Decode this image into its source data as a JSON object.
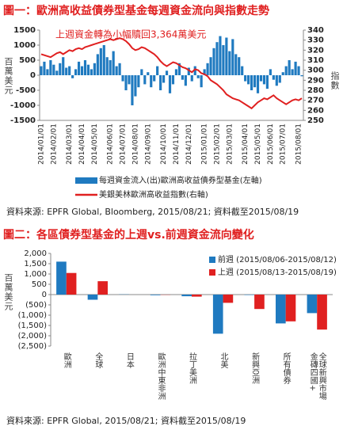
{
  "chart_data": [
    {
      "type": "combo",
      "title": "圖一：歐洲高收益債券型基金每週資金流向與指數走勢",
      "annotation": "上週資金轉為小幅贖回3,364萬美元",
      "y_label": "百萬美元",
      "y2_label": "指數",
      "categories": [
        "2014/01/01",
        null,
        null,
        null,
        "2014/02/01",
        null,
        null,
        null,
        null,
        "2014/03/01",
        null,
        null,
        null,
        "2014/04/01",
        null,
        null,
        null,
        "2014/05/01",
        null,
        null,
        null,
        null,
        "2014/06/01",
        null,
        null,
        null,
        "2014/07/01",
        null,
        null,
        null,
        "2014/08/01",
        null,
        null,
        null,
        "2014/09/01",
        null,
        null,
        null,
        null,
        "2014/10/01",
        null,
        null,
        null,
        "2014/11/01",
        null,
        null,
        null,
        "2014/12/01",
        null,
        null,
        null,
        null,
        "2015/01/01",
        null,
        null,
        null,
        "2015/02/01",
        null,
        null,
        null,
        "2015/03/01",
        null,
        null,
        null,
        null,
        "2015/04/01",
        null,
        null,
        null,
        "2015/05/01",
        null,
        null,
        null,
        "2015/06/01",
        null,
        null,
        null,
        "2015/07/01",
        null,
        null,
        null,
        null,
        "2015/08/01",
        null
      ],
      "series": [
        {
          "name": "每週資金流入(出)歐洲高收益債券型基金(左軸)",
          "type": "bar",
          "color": "#1f7ac0",
          "values": [
            300,
            450,
            200,
            500,
            350,
            150,
            400,
            600,
            250,
            300,
            -100,
            200,
            450,
            300,
            500,
            350,
            200,
            400,
            700,
            900,
            1000,
            600,
            500,
            800,
            300,
            400,
            -200,
            -500,
            -300,
            -1000,
            -700,
            -400,
            200,
            -300,
            100,
            -400,
            -200,
            300,
            -500,
            -250,
            150,
            -600,
            -300,
            200,
            400,
            -150,
            -350,
            250,
            -200,
            300,
            -100,
            -400,
            200,
            400,
            600,
            900,
            1100,
            1300,
            1000,
            1250,
            800,
            1200,
            700,
            600,
            300,
            -200,
            -300,
            -500,
            -400,
            -600,
            -200,
            -300,
            -450,
            200,
            -150,
            -350,
            -250,
            100,
            300,
            500,
            200,
            450,
            300,
            -33.64
          ]
        },
        {
          "name": "美銀美林歐洲高收益指數(右軸)",
          "type": "line",
          "color": "#e02020",
          "axis": "y2",
          "values": [
            316,
            315,
            314,
            313,
            315,
            317,
            318,
            316,
            318,
            320,
            319,
            321,
            322,
            321,
            323,
            324,
            325,
            326,
            327,
            328,
            329,
            330,
            331,
            330,
            331,
            332,
            331,
            329,
            326,
            322,
            320,
            321,
            323,
            322,
            320,
            318,
            316,
            313,
            309,
            306,
            304,
            306,
            308,
            307,
            305,
            303,
            302,
            300,
            298,
            301,
            300,
            297,
            296,
            294,
            290,
            288,
            286,
            283,
            280,
            276,
            274,
            272,
            271,
            270,
            268,
            266,
            264,
            262,
            265,
            268,
            270,
            272,
            271,
            273,
            275,
            272,
            270,
            268,
            266,
            268,
            270,
            271,
            270,
            272
          ]
        }
      ],
      "ylim": [
        -1500,
        1500
      ],
      "yticks": [
        -1500,
        -1000,
        -500,
        0,
        500,
        1000,
        1500
      ],
      "y2lim": [
        250,
        340
      ],
      "y2ticks": [
        250,
        260,
        270,
        280,
        290,
        300,
        310,
        320,
        330,
        340
      ],
      "legend": "bottom",
      "source": "資料來源: EPFR Global, Bloomberg, 2015/08/21; 資料截至2015/08/19"
    },
    {
      "type": "bar",
      "title": "圖二：各區債券型基金的上週vs.前週資金流向變化",
      "y_label": "百萬美元",
      "categories": [
        "歐洲",
        "全球",
        "日本",
        "歐洲中東非洲",
        "拉丁美洲",
        "北美",
        "新興亞洲",
        "所有債券",
        "全球新興市場金磚四國+"
      ],
      "series": [
        {
          "name": "前週 (2015/08/06-2015/08/12)",
          "color": "#1f7ac0",
          "values": [
            1600,
            -250,
            10,
            -30,
            -80,
            -1900,
            -20,
            -1400,
            -900
          ]
        },
        {
          "name": "上週 (2015/08/13-2015/08/19)",
          "color": "#e02020",
          "values": [
            1050,
            650,
            0,
            -10,
            -100,
            -400,
            -700,
            -1300,
            -1700
          ]
        }
      ],
      "ylim": [
        -2500,
        2000
      ],
      "yticks": [
        {
          "value": 2000,
          "label": "2,000"
        },
        {
          "value": 1500,
          "label": "1,500"
        },
        {
          "value": 1000,
          "label": "1,000"
        },
        500,
        0,
        {
          "value": -500,
          "label": "(500)"
        },
        {
          "value": -1000,
          "label": "(1,000)"
        },
        {
          "value": -1500,
          "label": "(1,500)"
        },
        {
          "value": -2000,
          "label": "(2,000)"
        },
        {
          "value": -2500,
          "label": "(2,500)"
        }
      ],
      "legend": "top-right",
      "source": "資料來源: EPFR Global, 2015/08/21; 資料截至2015/08/19"
    }
  ]
}
